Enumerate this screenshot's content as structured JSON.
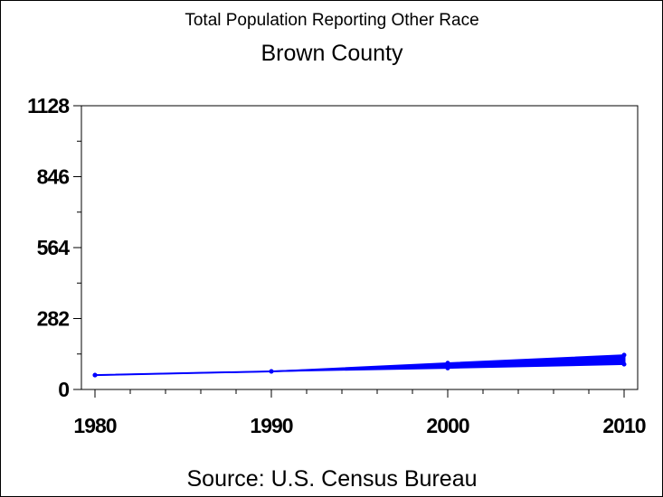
{
  "chart_data": {
    "type": "line",
    "title": "Total Population Reporting Other Race",
    "subtitle": "Brown County",
    "footnote": "Source: U.S. Census Bureau",
    "xlim": [
      1980,
      2010
    ],
    "ylim": [
      0,
      1128
    ],
    "x_ticks": [
      "1980",
      "1990",
      "2000",
      "2010"
    ],
    "y_ticks": [
      "0",
      "282",
      "564",
      "846",
      "1128"
    ],
    "series_color": "#0000ff",
    "x": [
      1980,
      1990,
      2000,
      2010
    ],
    "band_low": [
      57,
      72,
      85,
      100
    ],
    "band_high": [
      57,
      72,
      105,
      137
    ],
    "grid": false
  }
}
